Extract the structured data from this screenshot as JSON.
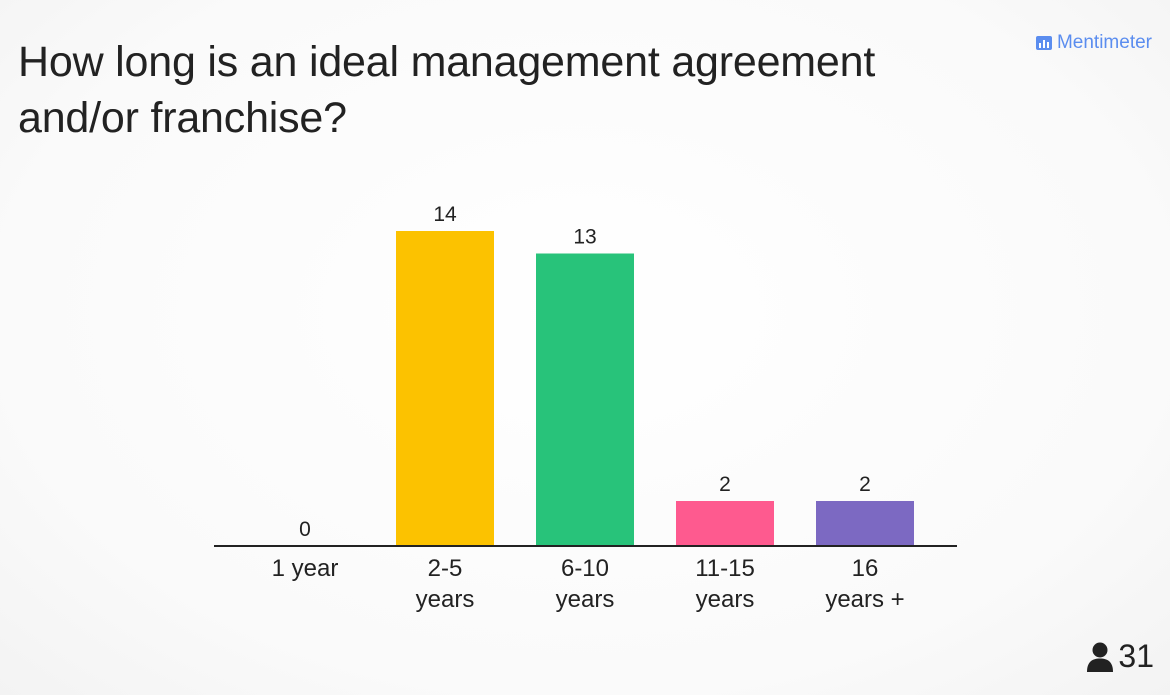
{
  "question": "How long is an ideal management agreement and/or franchise?",
  "brand": {
    "name": "Mentimeter",
    "icon": "bar-chart-icon",
    "color": "#5b8def"
  },
  "participants": {
    "count": "31",
    "icon": "person-icon"
  },
  "chart_data": {
    "type": "bar",
    "title": "How long is an ideal management agreement and/or franchise?",
    "categories": [
      [
        "1 year"
      ],
      [
        "2-5",
        "years"
      ],
      [
        "6-10",
        "years"
      ],
      [
        "11-15",
        "years"
      ],
      [
        "16",
        "years +"
      ]
    ],
    "values": [
      0,
      14,
      13,
      2,
      2
    ],
    "value_labels": [
      "0",
      "14",
      "13",
      "2",
      "2"
    ],
    "colors": [
      "#cccccc",
      "#fcc200",
      "#28c37a",
      "#fe5a8f",
      "#7c69c2"
    ],
    "ylim": [
      0,
      14
    ],
    "grid": false,
    "legend": "none"
  }
}
